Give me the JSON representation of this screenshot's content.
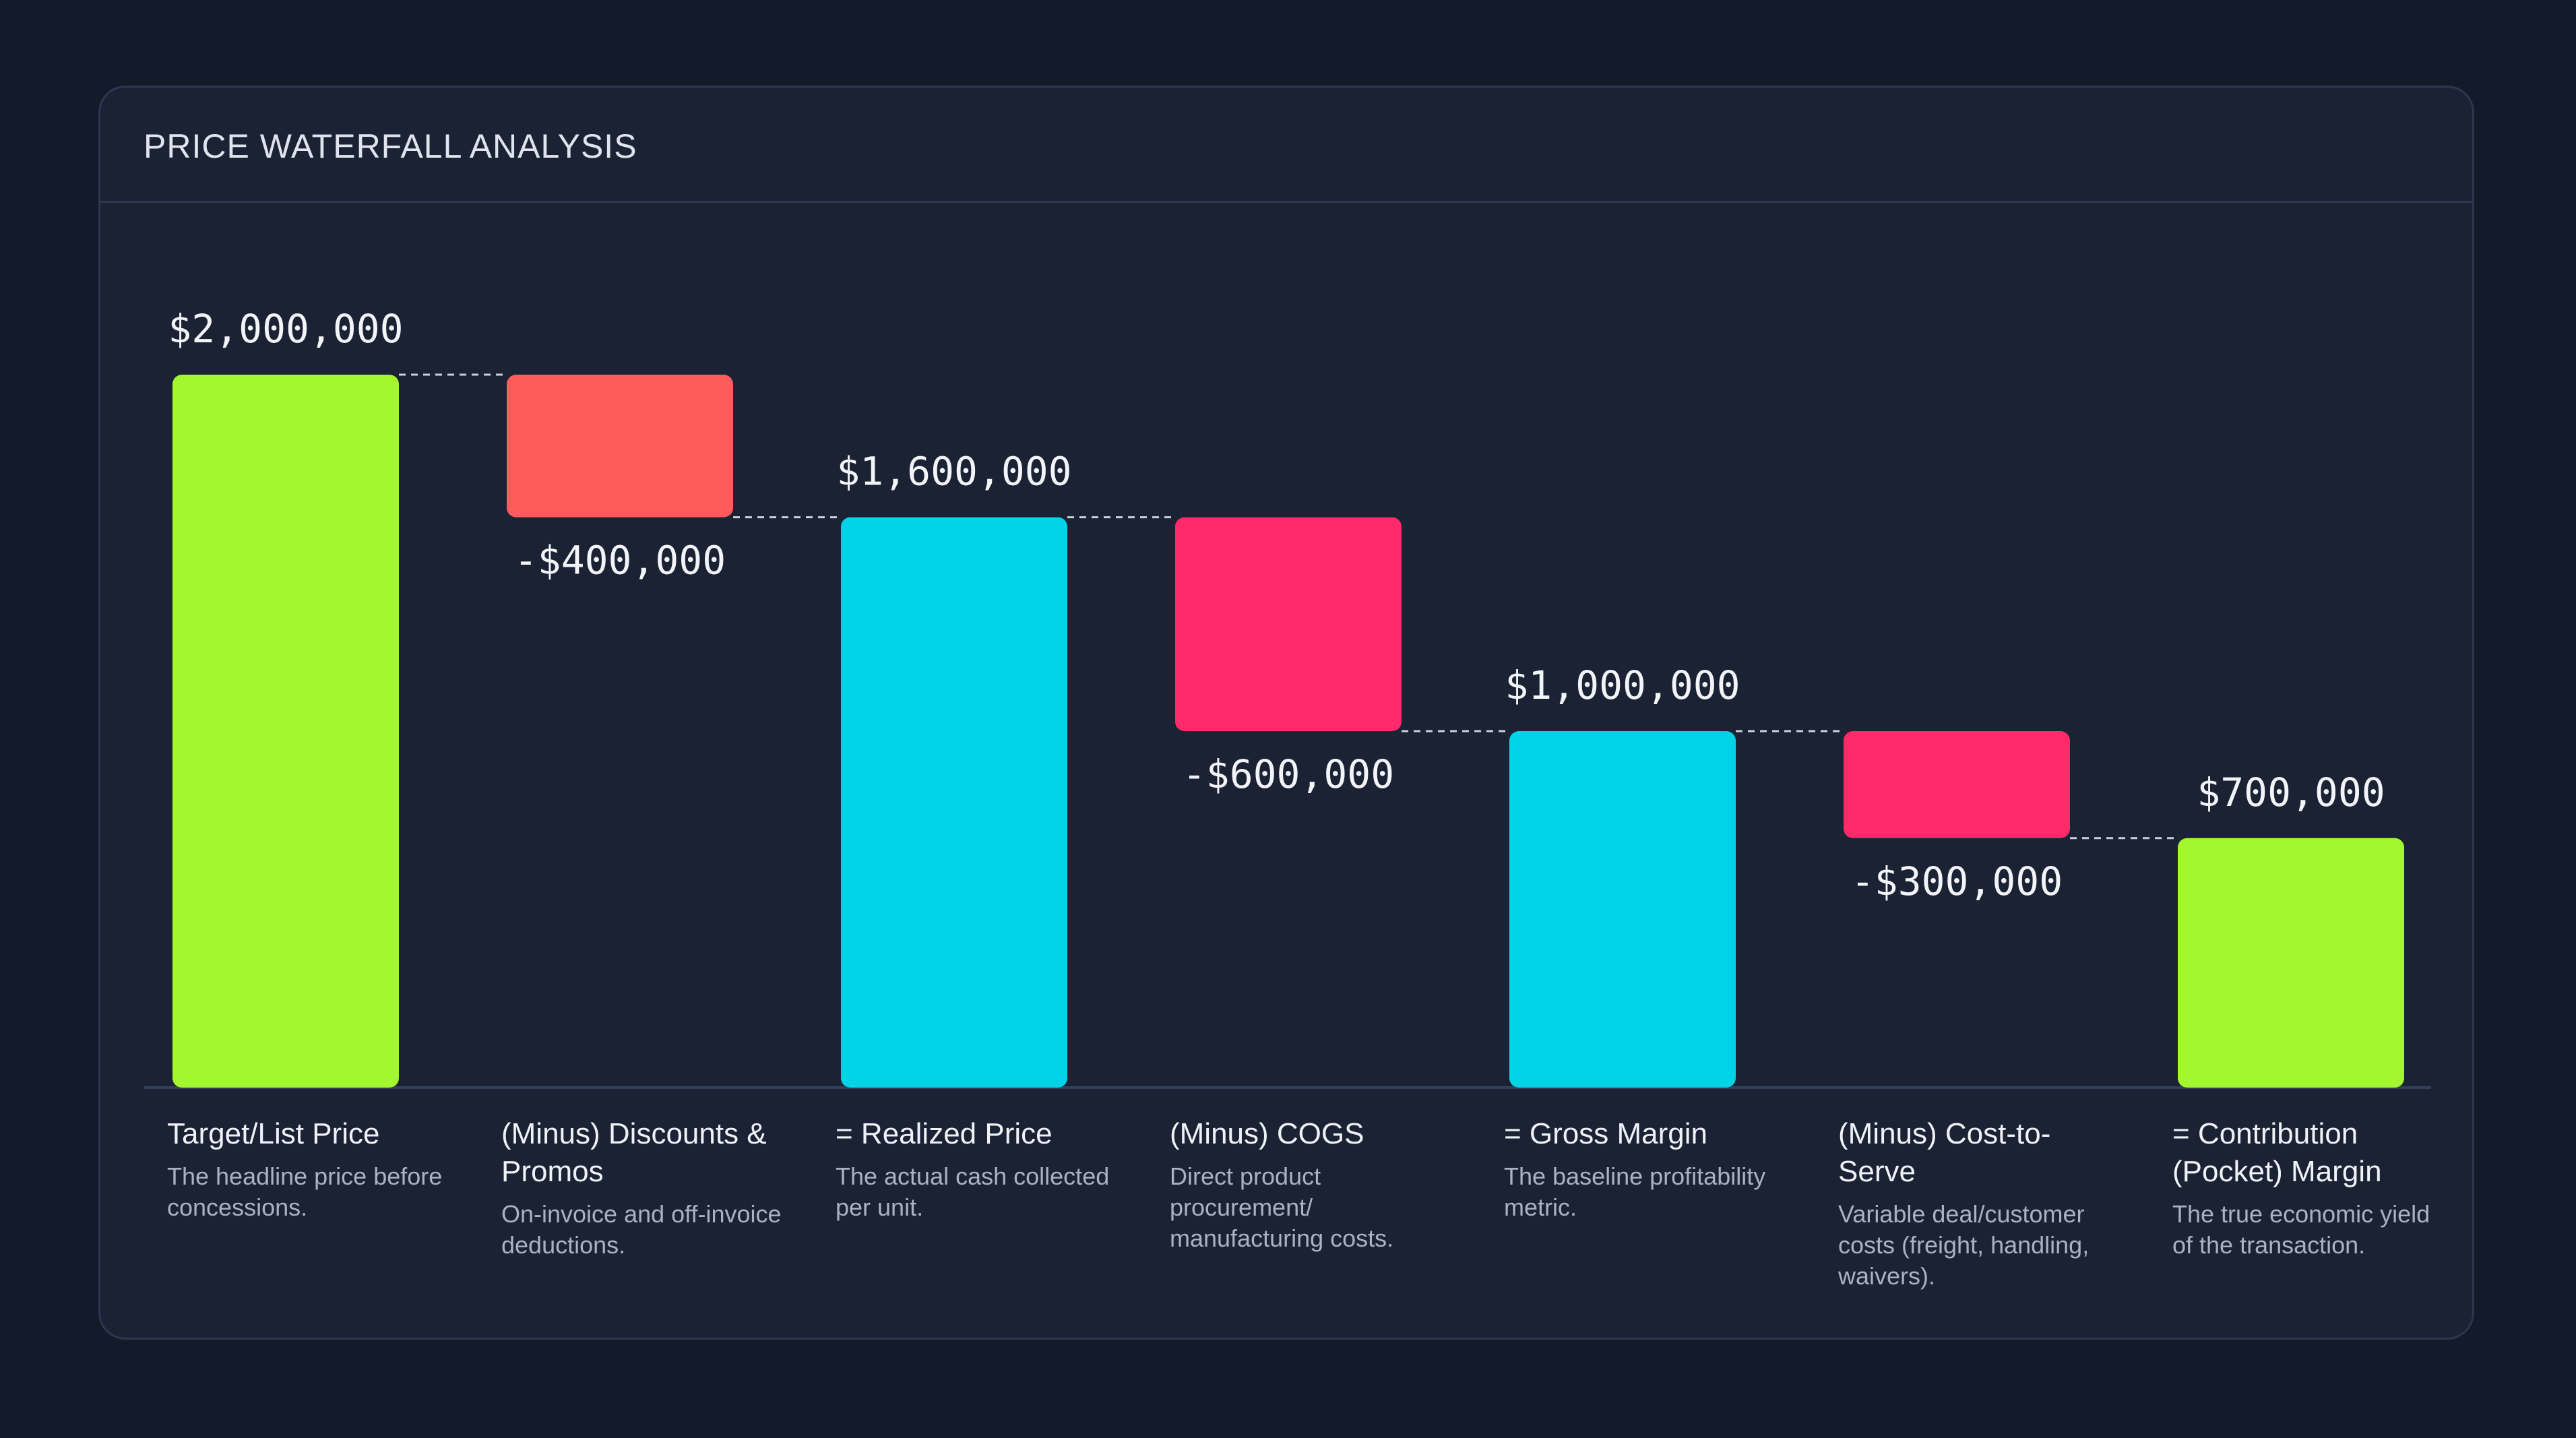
{
  "chart_data": {
    "type": "waterfall",
    "title": "PRICE WATERFALL ANALYSIS",
    "categories": [
      "Target/List Price",
      "(Minus) Discounts & Promos",
      "= Realized Price",
      "(Minus) COGS",
      "= Gross Margin",
      "(Minus) Cost-to-Serve",
      "= Contribution (Pocket) Margin"
    ],
    "descriptions": [
      "The headline price before concessions.",
      "On-invoice and off-invoice deductions.",
      "The actual cash collected per unit.",
      "Direct product procurement/ manufacturing costs.",
      "The baseline profitability metric.",
      "Variable deal/customer costs (freight, handling, waivers).",
      "The true economic yield of the transaction."
    ],
    "values": [
      2000000,
      -400000,
      1600000,
      -600000,
      1000000,
      -300000,
      700000
    ],
    "value_labels": [
      "$2,000,000",
      "-$400,000",
      "$1,600,000",
      "-$600,000",
      "$1,000,000",
      "-$300,000",
      "$700,000"
    ],
    "colors": [
      "#a3f72e",
      "#ff5a5c",
      "#00d2e8",
      "#ff2a6a",
      "#00d2e8",
      "#ff2a6a",
      "#a3f72e"
    ]
  }
}
